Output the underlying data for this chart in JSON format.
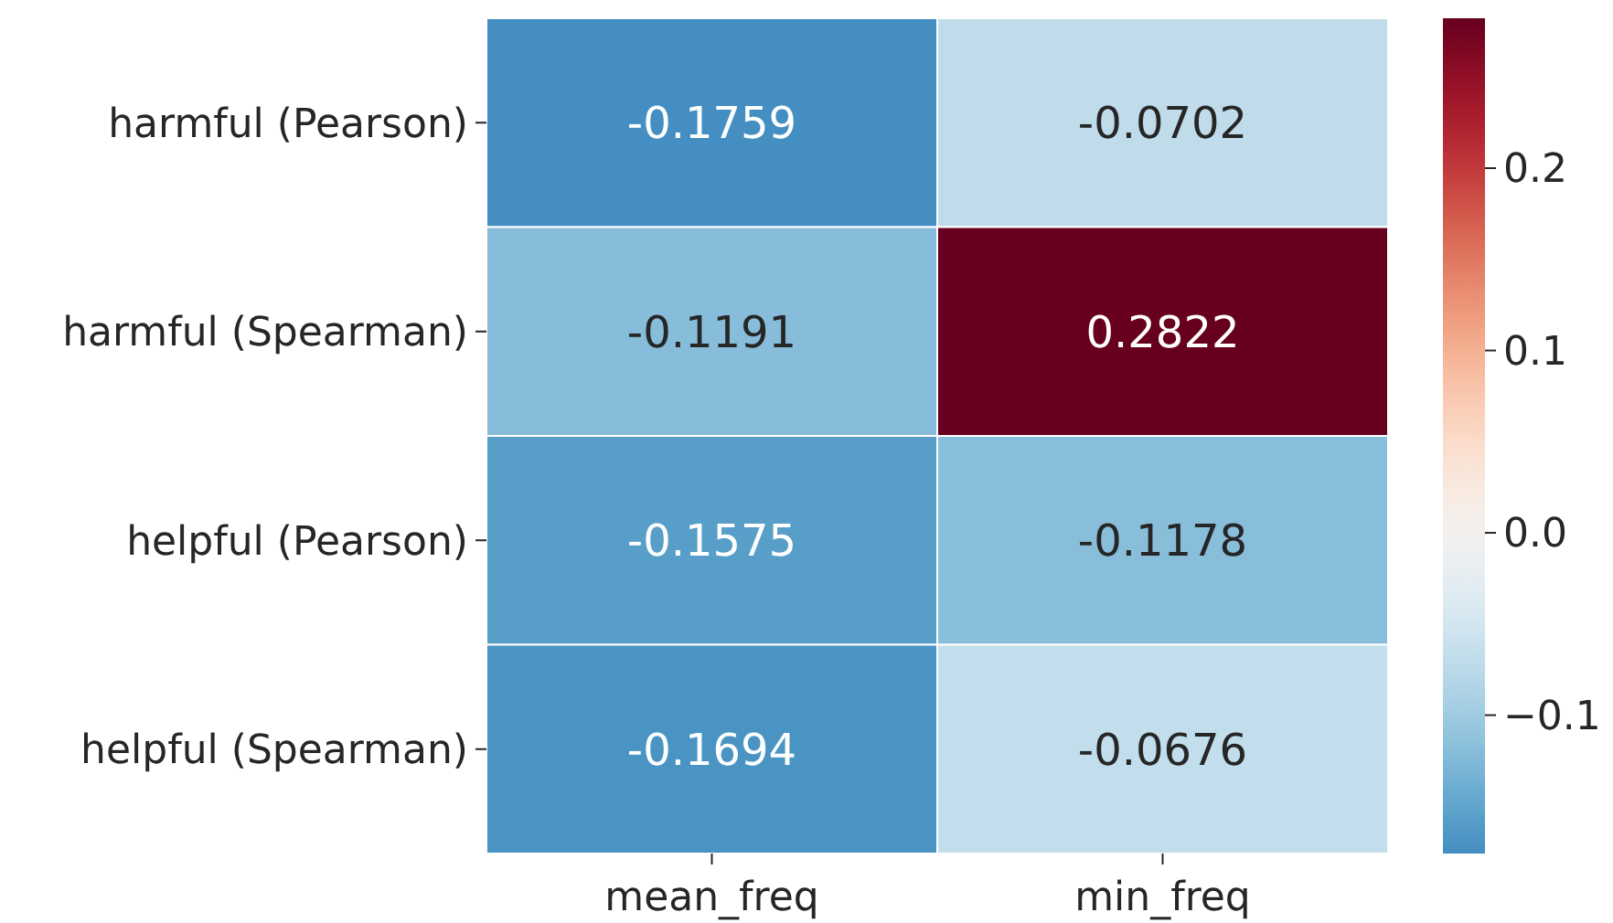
{
  "chart_data": {
    "type": "heatmap",
    "categories": [
      "mean_freq",
      "min_freq"
    ],
    "y_categories": [
      "harmful (Pearson)",
      "harmful (Spearman)",
      "helpful (Pearson)",
      "helpful (Spearman)"
    ],
    "cells": [
      [
        -0.1759,
        -0.0702
      ],
      [
        -0.1191,
        0.2822
      ],
      [
        -0.1575,
        -0.1178
      ],
      [
        -0.1694,
        -0.0676
      ]
    ],
    "data_labels": true,
    "clim": [
      -0.1759,
      0.2822
    ],
    "cticks": [
      {
        "value": -0.1,
        "label": "−0.1"
      },
      {
        "value": 0,
        "label": "0.0"
      },
      0.1,
      0.2
    ]
  }
}
